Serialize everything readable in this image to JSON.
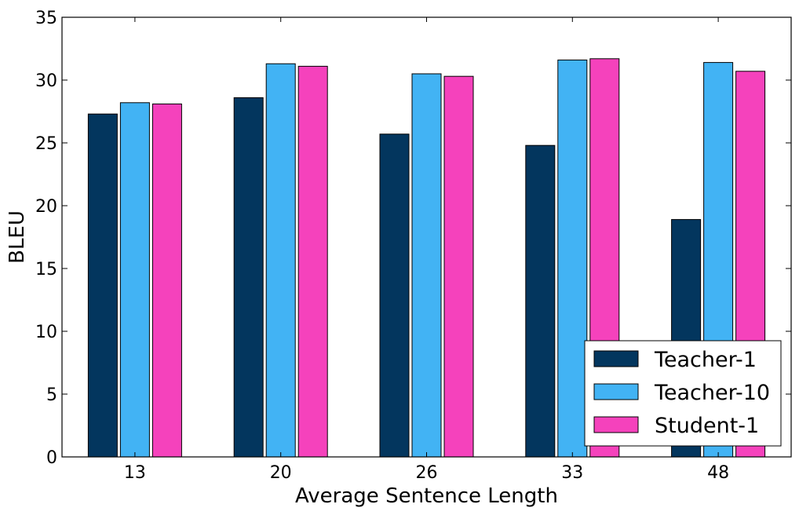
{
  "chart_data": {
    "type": "bar",
    "categories": [
      "13",
      "20",
      "26",
      "33",
      "48"
    ],
    "series": [
      {
        "name": "Teacher-1",
        "color": "#03365e",
        "values": [
          27.3,
          28.6,
          25.7,
          24.8,
          18.9
        ]
      },
      {
        "name": "Teacher-10",
        "color": "#42b3f4",
        "values": [
          28.2,
          31.3,
          30.5,
          31.6,
          31.4
        ]
      },
      {
        "name": "Student-1",
        "color": "#f542bc",
        "values": [
          28.1,
          31.1,
          30.3,
          31.7,
          30.7
        ]
      }
    ],
    "title": "",
    "xlabel": "Average Sentence Length",
    "ylabel": "BLEU",
    "ylim": [
      0,
      35
    ],
    "yticks": [
      0,
      5,
      10,
      15,
      20,
      25,
      30,
      35
    ],
    "grid": false,
    "legend_position": "bottom-right"
  }
}
